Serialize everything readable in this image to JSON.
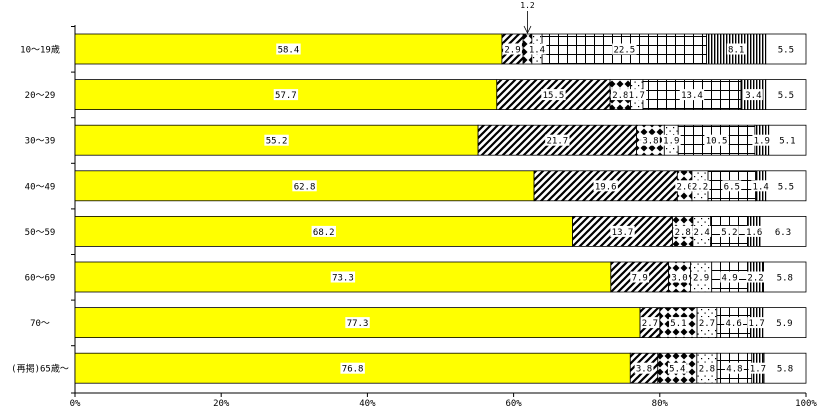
{
  "chart_data": {
    "type": "bar",
    "stacked": true,
    "orientation": "horizontal",
    "categories": [
      "10～19歳",
      "20～29",
      "30～39",
      "40～49",
      "50～59",
      "60～69",
      "70～",
      "(再掲)65歳～"
    ],
    "series": [
      {
        "values": [
          58.4,
          57.7,
          55.2,
          62.8,
          68.2,
          73.3,
          77.3,
          76.8
        ],
        "color": "#ffff00",
        "pattern": "solid"
      },
      {
        "values": [
          2.9,
          15.5,
          21.7,
          19.6,
          13.7,
          7.9,
          2.7,
          3.8
        ],
        "pattern": "diagonal"
      },
      {
        "values": [
          1.2,
          2.8,
          3.8,
          2.0,
          2.8,
          3.0,
          5.1,
          5.4
        ],
        "pattern": "diamond"
      },
      {
        "values": [
          1.4,
          1.7,
          1.9,
          2.2,
          2.4,
          2.9,
          2.7,
          2.8
        ],
        "pattern": "dots"
      },
      {
        "values": [
          22.5,
          13.4,
          10.5,
          6.5,
          5.2,
          4.9,
          4.6,
          4.8
        ],
        "pattern": "grid"
      },
      {
        "values": [
          8.1,
          3.4,
          1.9,
          1.4,
          1.6,
          2.2,
          1.7,
          1.7
        ],
        "pattern": "vertical"
      },
      {
        "values": [
          5.5,
          5.5,
          5.1,
          5.5,
          6.3,
          5.8,
          5.9,
          5.8
        ],
        "pattern": "blank"
      }
    ],
    "xlim": [
      0,
      100
    ],
    "x_ticks": [
      "0%",
      "20%",
      "40%",
      "60%",
      "80%",
      "100%"
    ],
    "label_text": [
      [
        "58.4",
        "2.9",
        "",
        "1.4",
        "22.5",
        "8.1",
        "5.5"
      ],
      [
        "57.7",
        "15.5",
        "2.8",
        "1.7",
        "13.4",
        "3.4",
        "5.5"
      ],
      [
        "55.2",
        "21.7",
        "3.8",
        "1.9",
        "10.5",
        "1.9",
        "5.1"
      ],
      [
        "62.8",
        "19.6",
        "2.0",
        "2.2",
        "6.5",
        "1.4",
        "5.5"
      ],
      [
        "68.2",
        "13.7",
        "2.8",
        "2.4",
        "5.2",
        "1.6",
        "6.3"
      ],
      [
        "73.3",
        "7.9",
        "3.0",
        "2.9",
        "4.9",
        "2.2",
        "5.8"
      ],
      [
        "77.3",
        "2.7",
        "5.1",
        "2.7",
        "4.6",
        "1.7",
        "5.9"
      ],
      [
        "76.8",
        "3.8",
        "5.4",
        "2.8",
        "4.8",
        "1.7",
        "5.8"
      ]
    ],
    "callout": {
      "row": 0,
      "segment": 2,
      "label": "1.2"
    },
    "grid": false,
    "legend": "none"
  }
}
